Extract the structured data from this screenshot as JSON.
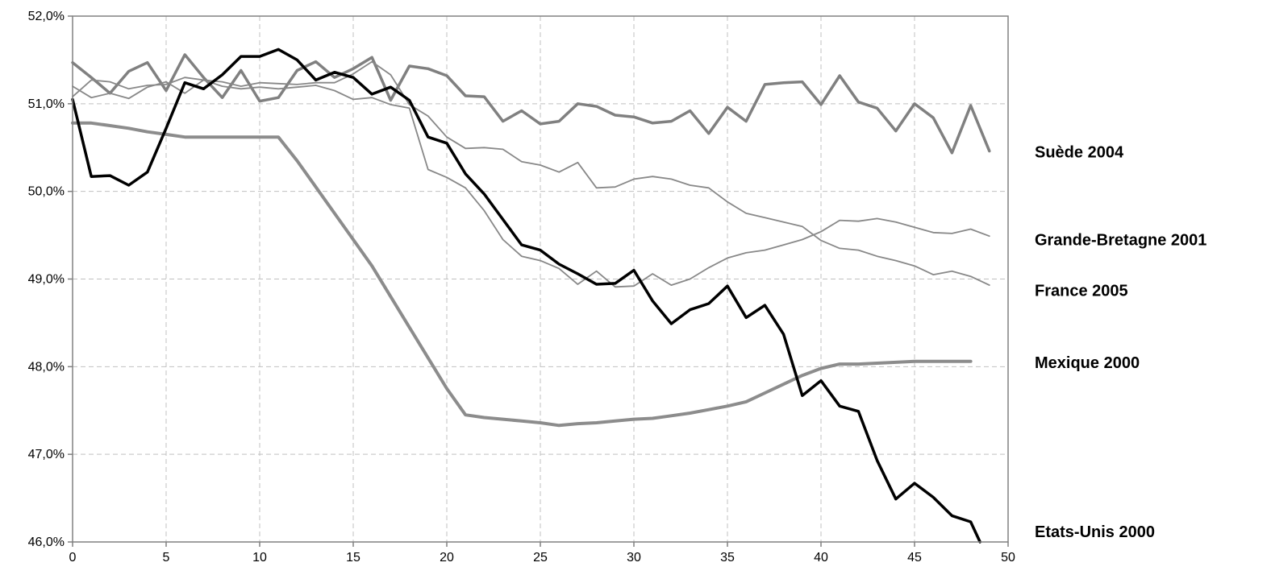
{
  "chart_data": {
    "type": "line",
    "title": "",
    "xlabel": "",
    "ylabel": "",
    "xlim": [
      0,
      50
    ],
    "ylim": [
      46.0,
      52.0
    ],
    "x_ticks": [
      0,
      5,
      10,
      15,
      20,
      25,
      30,
      35,
      40,
      45,
      50
    ],
    "x_tick_labels": [
      "0",
      "5",
      "10",
      "15",
      "20",
      "25",
      "30",
      "35",
      "40",
      "45",
      "50"
    ],
    "y_ticks": [
      46,
      47,
      48,
      49,
      50,
      51,
      52
    ],
    "y_tick_labels": [
      "46,0%",
      "47,0%",
      "48,0%",
      "49,0%",
      "50,0%",
      "51,0%",
      "52,0%"
    ],
    "grid": "dashed both axes",
    "legend": "labels at right",
    "series": [
      {
        "name": "Suède 2004",
        "color": "#808080",
        "stroke": "thick",
        "x": [
          0,
          1,
          2,
          3,
          4,
          5,
          6,
          7,
          8,
          9,
          10,
          11,
          12,
          13,
          14,
          15,
          16,
          17,
          18,
          19,
          20,
          21,
          22,
          23,
          24,
          25,
          26,
          27,
          28,
          29,
          30,
          31,
          32,
          33,
          34,
          35,
          36,
          37,
          38,
          39,
          40,
          41,
          42,
          43,
          44,
          45,
          46,
          47,
          48,
          49
        ],
        "values": [
          51.47,
          51.3,
          51.12,
          51.37,
          51.47,
          51.15,
          51.56,
          51.3,
          51.07,
          51.38,
          51.03,
          51.07,
          51.38,
          51.48,
          51.3,
          51.4,
          51.53,
          51.04,
          51.43,
          51.4,
          51.32,
          51.09,
          51.08,
          50.8,
          50.92,
          50.77,
          50.8,
          51.0,
          50.97,
          50.87,
          50.85,
          50.78,
          50.8,
          50.92,
          50.66,
          50.96,
          50.8,
          51.22,
          51.24,
          51.25,
          50.99,
          51.32,
          51.02,
          50.95,
          50.69,
          51.0,
          50.84,
          50.44,
          50.98,
          50.46
        ]
      },
      {
        "name": "Grande-Bretagne 2001",
        "color": "#888888",
        "stroke": "thin",
        "x": [
          0,
          1,
          2,
          3,
          4,
          5,
          6,
          7,
          8,
          9,
          10,
          11,
          12,
          13,
          14,
          15,
          16,
          17,
          18,
          19,
          20,
          21,
          22,
          23,
          24,
          25,
          26,
          27,
          28,
          29,
          30,
          31,
          32,
          33,
          34,
          35,
          36,
          37,
          38,
          39,
          40,
          41,
          42,
          43,
          44,
          45,
          46,
          47,
          48,
          49
        ],
        "values": [
          51.08,
          51.27,
          51.25,
          51.17,
          51.21,
          51.22,
          51.3,
          51.27,
          51.25,
          51.2,
          51.24,
          51.23,
          51.22,
          51.24,
          51.24,
          51.34,
          51.48,
          51.33,
          50.99,
          50.86,
          50.62,
          50.49,
          50.5,
          50.48,
          50.34,
          50.3,
          50.22,
          50.33,
          50.04,
          50.05,
          50.14,
          50.17,
          50.14,
          50.07,
          50.04,
          49.88,
          49.75,
          49.7,
          49.65,
          49.6,
          49.44,
          49.35,
          49.33,
          49.26,
          49.21,
          49.15,
          49.05,
          49.09,
          49.03,
          48.93
        ]
      },
      {
        "name": "France 2005",
        "color": "#888888",
        "stroke": "thin",
        "x": [
          0,
          1,
          2,
          3,
          4,
          5,
          6,
          7,
          8,
          9,
          10,
          11,
          12,
          13,
          14,
          15,
          16,
          17,
          18,
          19,
          20,
          21,
          22,
          23,
          24,
          25,
          26,
          27,
          28,
          29,
          30,
          31,
          32,
          33,
          34,
          35,
          36,
          37,
          38,
          39,
          40,
          41,
          42,
          43,
          44,
          45,
          46,
          47,
          48,
          49
        ],
        "values": [
          51.2,
          51.07,
          51.12,
          51.06,
          51.19,
          51.25,
          51.12,
          51.27,
          51.2,
          51.17,
          51.19,
          51.17,
          51.19,
          51.21,
          51.15,
          51.05,
          51.07,
          50.99,
          50.95,
          50.25,
          50.16,
          50.04,
          49.78,
          49.45,
          49.26,
          49.21,
          49.12,
          48.94,
          49.09,
          48.91,
          48.92,
          49.06,
          48.93,
          49.0,
          49.13,
          49.24,
          49.3,
          49.33,
          49.39,
          49.45,
          49.54,
          49.67,
          49.66,
          49.69,
          49.65,
          49.59,
          49.53,
          49.52,
          49.57,
          49.49
        ]
      },
      {
        "name": "Mexique 2000",
        "color": "#8c8c8c",
        "stroke": "thick-smooth",
        "x": [
          0,
          1,
          2,
          3,
          4,
          5,
          6,
          7,
          8,
          9,
          10,
          11,
          12,
          13,
          14,
          15,
          16,
          17,
          18,
          19,
          20,
          21,
          22,
          23,
          24,
          25,
          26,
          27,
          28,
          29,
          30,
          31,
          32,
          33,
          34,
          35,
          36,
          37,
          38,
          39,
          40,
          41,
          42,
          43,
          44,
          45,
          46,
          47,
          48
        ],
        "values": [
          50.78,
          50.78,
          50.75,
          50.72,
          50.68,
          50.65,
          50.62,
          50.62,
          50.62,
          50.62,
          50.62,
          50.62,
          50.35,
          50.05,
          49.75,
          49.45,
          49.15,
          48.8,
          48.45,
          48.1,
          47.75,
          47.45,
          47.42,
          47.4,
          47.38,
          47.36,
          47.33,
          47.35,
          47.36,
          47.38,
          47.4,
          47.41,
          47.44,
          47.47,
          47.51,
          47.55,
          47.6,
          47.7,
          47.8,
          47.9,
          47.98,
          48.03,
          48.03,
          48.04,
          48.05,
          48.06,
          48.06,
          48.06,
          48.06
        ]
      },
      {
        "name": "Etats-Unis 2000",
        "color": "#000000",
        "stroke": "thick",
        "x": [
          0,
          1,
          2,
          3,
          4,
          5,
          6,
          7,
          8,
          9,
          10,
          11,
          12,
          13,
          14,
          15,
          16,
          17,
          18,
          19,
          20,
          21,
          22,
          23,
          24,
          25,
          26,
          27,
          28,
          29,
          30,
          31,
          32,
          33,
          34,
          35,
          36,
          37,
          38,
          39,
          40,
          41,
          42,
          43,
          44,
          45,
          46,
          47,
          48,
          48.5
        ],
        "values": [
          51.05,
          50.17,
          50.18,
          50.07,
          50.22,
          50.72,
          51.24,
          51.17,
          51.33,
          51.54,
          51.54,
          51.62,
          51.5,
          51.27,
          51.36,
          51.3,
          51.11,
          51.19,
          51.04,
          50.62,
          50.55,
          50.2,
          49.97,
          49.68,
          49.39,
          49.33,
          49.17,
          49.06,
          48.94,
          48.95,
          49.1,
          48.75,
          48.49,
          48.65,
          48.72,
          48.92,
          48.56,
          48.7,
          48.37,
          47.67,
          47.84,
          47.55,
          47.49,
          46.93,
          46.49,
          46.67,
          46.51,
          46.3,
          46.23,
          46.0
        ]
      }
    ]
  }
}
